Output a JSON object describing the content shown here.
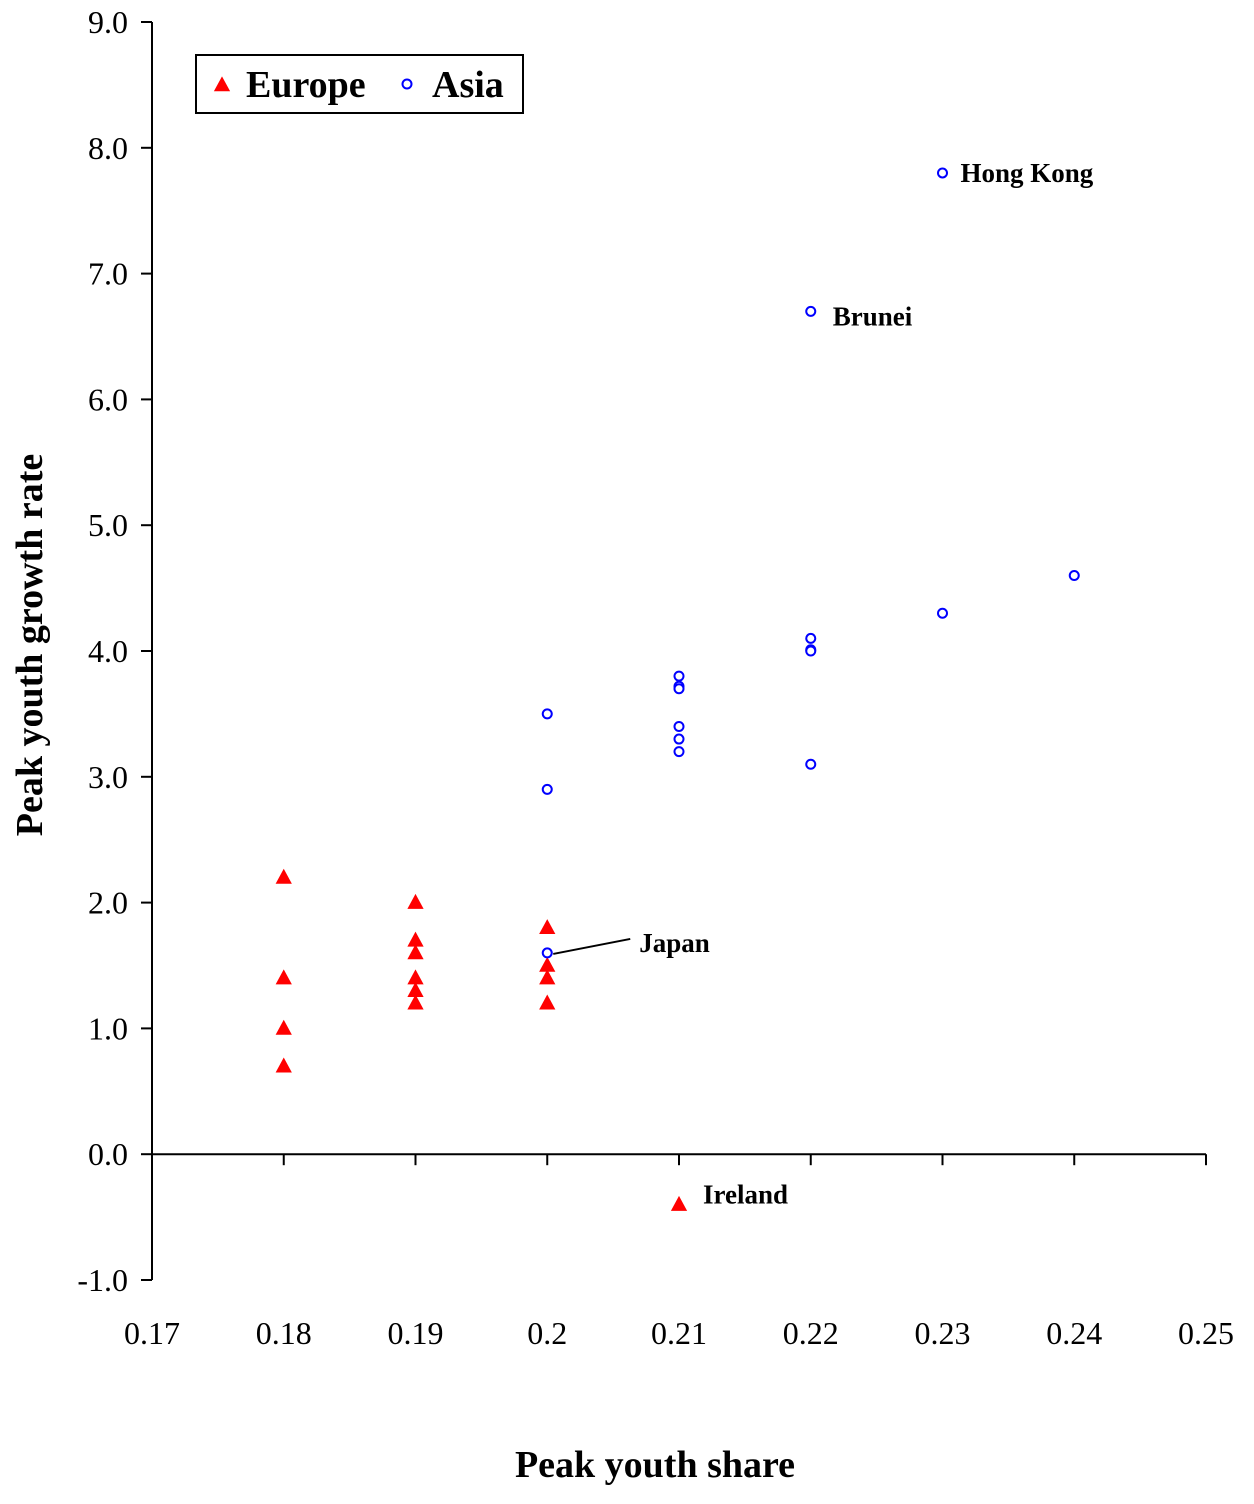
{
  "chart_data": {
    "type": "scatter",
    "xlabel": "Peak youth share",
    "ylabel": "Peak youth growth rate",
    "xlim": [
      0.17,
      0.25
    ],
    "ylim": [
      -1.0,
      9.0
    ],
    "x_ticks": [
      "0.17",
      "0.18",
      "0.19",
      "0.2",
      "0.21",
      "0.22",
      "0.23",
      "0.24",
      "0.25"
    ],
    "y_ticks": [
      "-1.0",
      "0.0",
      "1.0",
      "2.0",
      "3.0",
      "4.0",
      "5.0",
      "6.0",
      "7.0",
      "8.0",
      "9.0"
    ],
    "grid": false,
    "legend_position": "top-left",
    "series": [
      {
        "name": "Europe",
        "marker": "triangle",
        "color": "#ff0000",
        "points": [
          [
            0.18,
            2.2
          ],
          [
            0.18,
            1.4
          ],
          [
            0.18,
            1.0
          ],
          [
            0.18,
            0.7
          ],
          [
            0.19,
            2.0
          ],
          [
            0.19,
            1.7
          ],
          [
            0.19,
            1.6
          ],
          [
            0.19,
            1.4
          ],
          [
            0.19,
            1.3
          ],
          [
            0.19,
            1.2
          ],
          [
            0.2,
            1.8
          ],
          [
            0.2,
            1.5
          ],
          [
            0.2,
            1.4
          ],
          [
            0.2,
            1.2
          ],
          [
            0.21,
            -0.4
          ]
        ]
      },
      {
        "name": "Asia",
        "marker": "circle",
        "color": "#0000ff",
        "points": [
          [
            0.2,
            3.5
          ],
          [
            0.2,
            2.9
          ],
          [
            0.2,
            1.6
          ],
          [
            0.21,
            3.8
          ],
          [
            0.21,
            3.72
          ],
          [
            0.21,
            3.7
          ],
          [
            0.21,
            3.4
          ],
          [
            0.21,
            3.3
          ],
          [
            0.21,
            3.2
          ],
          [
            0.22,
            6.7
          ],
          [
            0.22,
            4.1
          ],
          [
            0.22,
            4.01
          ],
          [
            0.22,
            4.0
          ],
          [
            0.22,
            3.1
          ],
          [
            0.23,
            7.8
          ],
          [
            0.23,
            4.3
          ],
          [
            0.24,
            4.6
          ]
        ]
      }
    ],
    "annotations": [
      {
        "text": "Hong Kong",
        "x": 0.23,
        "y": 7.8
      },
      {
        "text": "Brunei",
        "x": 0.22,
        "y": 6.7
      },
      {
        "text": "Japan",
        "x": 0.2,
        "y": 1.6,
        "leader_line": true
      },
      {
        "text": "Ireland",
        "x": 0.21,
        "y": -0.4
      }
    ]
  }
}
